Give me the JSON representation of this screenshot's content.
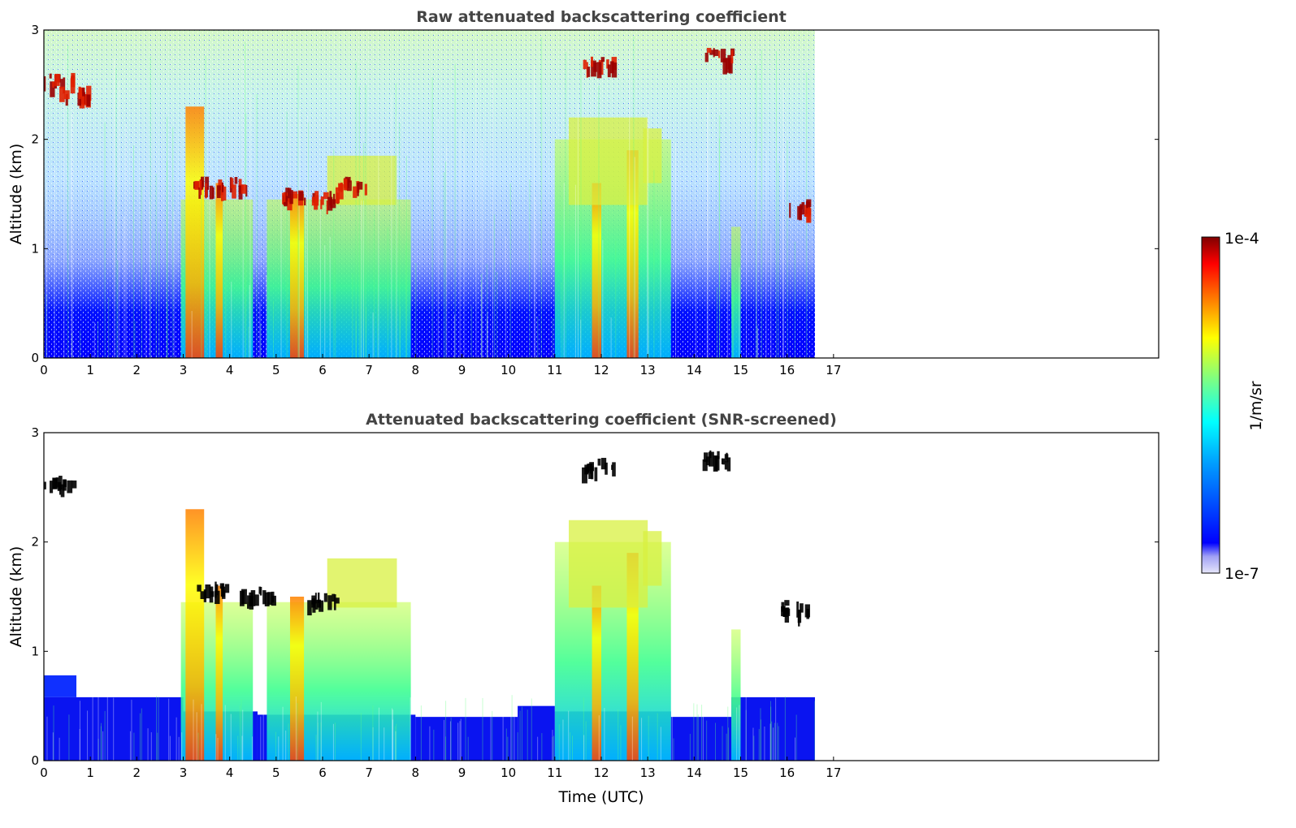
{
  "chart_data": [
    {
      "type": "heatmap",
      "title": "Raw attenuated backscattering coefficient",
      "xlabel": "",
      "ylabel": "Altitude (km)",
      "xlim": [
        0,
        24
      ],
      "ylim": [
        0,
        3
      ],
      "x_ticks": [
        "0",
        "1",
        "2",
        "3",
        "4",
        "5",
        "6",
        "7",
        "8",
        "9",
        "10",
        "11",
        "12",
        "13",
        "14",
        "15",
        "16",
        "17"
      ],
      "y_ticks": [
        "0",
        "1",
        "2",
        "3"
      ],
      "data_extent_x": [
        0,
        16.6
      ],
      "clouds": [
        {
          "x": 0.3,
          "y": 2.57
        },
        {
          "x": 0.65,
          "y": 2.45
        },
        {
          "x": 3.6,
          "y": 1.6
        },
        {
          "x": 4.1,
          "y": 1.6
        },
        {
          "x": 5.3,
          "y": 1.5
        },
        {
          "x": 6.0,
          "y": 1.48
        },
        {
          "x": 6.6,
          "y": 1.6
        },
        {
          "x": 11.95,
          "y": 2.7
        },
        {
          "x": 14.5,
          "y": 2.78
        },
        {
          "x": 16.2,
          "y": 1.4
        }
      ]
    },
    {
      "type": "heatmap",
      "title": "Attenuated backscattering coefficient (SNR-screened)",
      "xlabel": "Time (UTC)",
      "ylabel": "Altitude (km)",
      "xlim": [
        0,
        24
      ],
      "ylim": [
        0,
        3
      ],
      "x_ticks": [
        "0",
        "1",
        "2",
        "3",
        "4",
        "5",
        "6",
        "7",
        "8",
        "9",
        "10",
        "11",
        "12",
        "13",
        "14",
        "15",
        "16",
        "17"
      ],
      "y_ticks": [
        "0",
        "1",
        "2",
        "3"
      ],
      "data_extent_x": [
        0,
        16.6
      ],
      "clouds": [
        {
          "x": 0.3,
          "y": 2.55
        },
        {
          "x": 3.6,
          "y": 1.58
        },
        {
          "x": 4.6,
          "y": 1.55
        },
        {
          "x": 6.0,
          "y": 1.48
        },
        {
          "x": 11.95,
          "y": 2.72
        },
        {
          "x": 14.5,
          "y": 2.78
        },
        {
          "x": 16.2,
          "y": 1.42
        }
      ]
    }
  ],
  "colorbar": {
    "label": "1/m/sr",
    "max_label": "1e-4",
    "min_label": "1e-7",
    "colormap": "jet",
    "colors": [
      "#e6e6fa",
      "#0000ff",
      "#00ffff",
      "#ffff00",
      "#ff0000",
      "#800000"
    ]
  }
}
